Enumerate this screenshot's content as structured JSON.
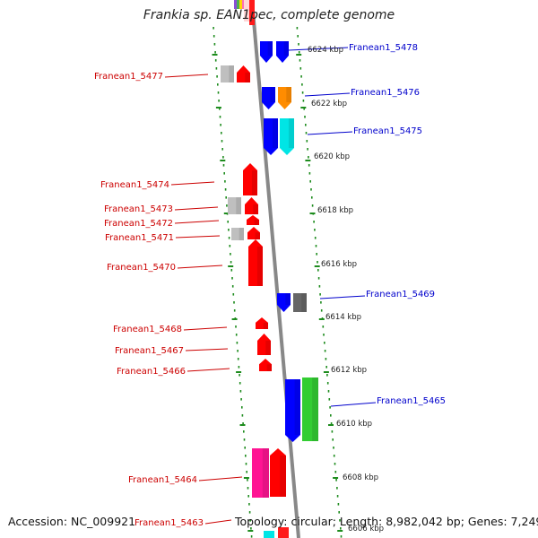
{
  "header": {
    "title": "Frankia sp. EAN1pec, complete genome"
  },
  "footer": {
    "accession": "Accession: NC_009921",
    "topology": "Topology: circular; Length: 8,982,042 bp; Genes: 7,249"
  },
  "colors": {
    "backbone": "#888888",
    "track_dots": "#1e8c1e",
    "minus_label": "#cc0000",
    "plus_label": "#0000cc"
  },
  "kbp_ticks": [
    "6624 kbp",
    "6622 kbp",
    "6620 kbp",
    "6618 kbp",
    "6616 kbp",
    "6614 kbp",
    "6612 kbp",
    "6610 kbp",
    "6608 kbp",
    "6606 kbp"
  ],
  "genes": [
    {
      "label": "Franean1_5478",
      "strand": "plus"
    },
    {
      "label": "Franean1_5477",
      "strand": "minus"
    },
    {
      "label": "Franean1_5476",
      "strand": "plus"
    },
    {
      "label": "Franean1_5475",
      "strand": "plus"
    },
    {
      "label": "Franean1_5474",
      "strand": "minus"
    },
    {
      "label": "Franean1_5473",
      "strand": "minus"
    },
    {
      "label": "Franean1_5472",
      "strand": "minus"
    },
    {
      "label": "Franean1_5471",
      "strand": "minus"
    },
    {
      "label": "Franean1_5470",
      "strand": "minus"
    },
    {
      "label": "Franean1_5469",
      "strand": "plus"
    },
    {
      "label": "Franean1_5468",
      "strand": "minus"
    },
    {
      "label": "Franean1_5467",
      "strand": "minus"
    },
    {
      "label": "Franean1_5466",
      "strand": "minus"
    },
    {
      "label": "Franean1_5465",
      "strand": "plus"
    },
    {
      "label": "Franean1_5464",
      "strand": "minus"
    },
    {
      "label": "Franean1_5463",
      "strand": "minus"
    }
  ]
}
